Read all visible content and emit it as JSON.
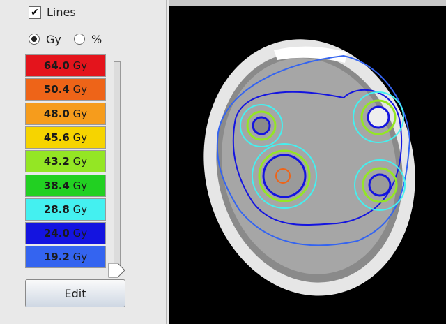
{
  "panel": {
    "lines_label": "Lines",
    "radio_gy": "Gy",
    "radio_percent": "%",
    "doses": [
      {
        "value": "64.0",
        "unit": "Gy",
        "color": "#e4141c"
      },
      {
        "value": "50.4",
        "unit": "Gy",
        "color": "#ee6418"
      },
      {
        "value": "48.0",
        "unit": "Gy",
        "color": "#f69c1c"
      },
      {
        "value": "45.6",
        "unit": "Gy",
        "color": "#f6d400"
      },
      {
        "value": "43.2",
        "unit": "Gy",
        "color": "#94e624"
      },
      {
        "value": "38.4",
        "unit": "Gy",
        "color": "#22d022"
      },
      {
        "value": "28.8",
        "unit": "Gy",
        "color": "#44f0f0"
      },
      {
        "value": "24.0",
        "unit": "Gy",
        "color": "#1414e0"
      },
      {
        "value": "19.2",
        "unit": "Gy",
        "color": "#3464f0"
      }
    ],
    "button": "Edit"
  }
}
